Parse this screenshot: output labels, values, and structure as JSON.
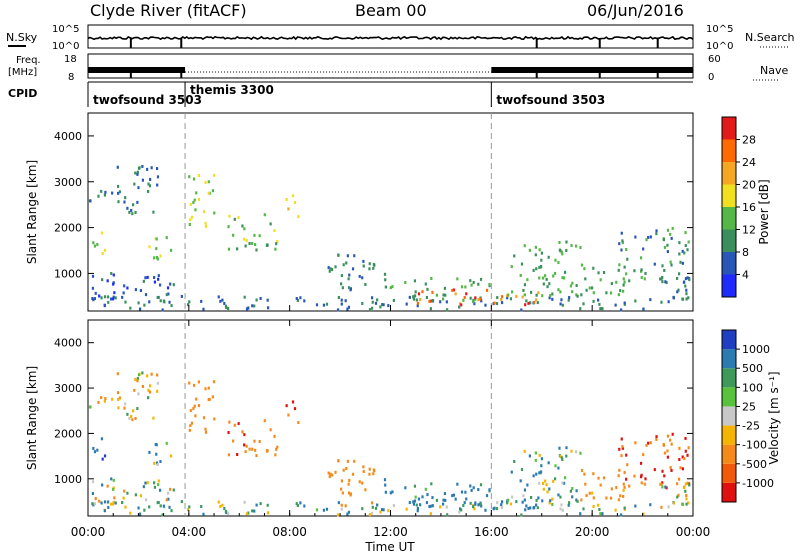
{
  "header": {
    "station": "Clyde River (fitACF)",
    "beam": "Beam 00",
    "date": "06/Jun/2016"
  },
  "noise_panel": {
    "left_label": "N.Sky",
    "right_label": "N.Search",
    "left_ticks": [
      "10^5",
      "10^0"
    ],
    "right_ticks": [
      "10^5",
      "10^0"
    ]
  },
  "freq_panel": {
    "left_label_1": "Freq.",
    "left_label_2": "[MHz]",
    "right_label": "Nave",
    "left_ticks": [
      "18",
      "8"
    ],
    "right_ticks": [
      "60",
      "0"
    ]
  },
  "cpid_panel": {
    "label": "CPID",
    "segments": [
      {
        "name": "twofsound",
        "id": "3503",
        "start_hour": 0.0,
        "end_hour": 3.85
      },
      {
        "name": "themis",
        "id": "3300",
        "start_hour": 3.85,
        "end_hour": 16.0
      },
      {
        "name": "twofsound",
        "id": "3503",
        "start_hour": 16.0,
        "end_hour": 24.0
      }
    ]
  },
  "x_axis": {
    "label": "Time UT",
    "ticks": [
      "00:00",
      "04:00",
      "08:00",
      "12:00",
      "16:00",
      "20:00",
      "00:00"
    ]
  },
  "power_panel": {
    "ylabel": "Slant Range [km]",
    "yticks": [
      "1000",
      "2000",
      "3000",
      "4000"
    ],
    "colorbar_label": "Power [dB]",
    "colorbar_ticks": [
      "4",
      "8",
      "12",
      "16",
      "20",
      "24",
      "28"
    ],
    "colors": [
      "#1f2bff",
      "#2957b8",
      "#3a8f5c",
      "#54b747",
      "#f0e020",
      "#f5a623",
      "#ff6a00",
      "#e41a1a"
    ]
  },
  "velocity_panel": {
    "ylabel": "Slant Range [km]",
    "yticks": [
      "1000",
      "2000",
      "3000",
      "4000"
    ],
    "colorbar_label": "Velocity [m s⁻¹]",
    "colorbar_ticks": [
      "1000",
      "500",
      "100",
      "25",
      "-25",
      "-100",
      "-500",
      "-1000"
    ],
    "colors": [
      "#1f3fc2",
      "#2b7ab0",
      "#3d9a5a",
      "#59c23d",
      "#c8c8c8",
      "#f5b400",
      "#f58a1a",
      "#f05a0a",
      "#e01010"
    ]
  },
  "chart_data": {
    "type": "heatmap",
    "title": "Clyde River (fitACF)  Beam 00  06/Jun/2016",
    "xlabel": "Time UT",
    "ylabel": "Slant Range [km]",
    "xlim": [
      0,
      24
    ],
    "ylim": [
      180,
      4500
    ],
    "power_scale_db": [
      0,
      32
    ],
    "velocity_scale_ms": [
      -1000,
      1000
    ],
    "echo_regions": [
      {
        "t_start": 0.0,
        "t_end": 24.0,
        "range_start": 200,
        "range_end": 500,
        "power_db": 8,
        "velocity": 50
      },
      {
        "t_start": 0.0,
        "t_end": 3.5,
        "range_start": 400,
        "range_end": 1000,
        "power_db": 6,
        "velocity": 0
      },
      {
        "t_start": 0.1,
        "t_end": 0.8,
        "range_start": 1400,
        "range_end": 1900,
        "power_db": 14,
        "velocity": 400
      },
      {
        "t_start": 0.0,
        "t_end": 1.0,
        "range_start": 2500,
        "range_end": 2900,
        "power_db": 8,
        "velocity": -80
      },
      {
        "t_start": 1.0,
        "t_end": 2.8,
        "range_start": 2300,
        "range_end": 3400,
        "power_db": 8,
        "velocity": -60
      },
      {
        "t_start": 2.3,
        "t_end": 3.5,
        "range_start": 1300,
        "range_end": 1800,
        "power_db": 14,
        "velocity": 60
      },
      {
        "t_start": 3.9,
        "t_end": 5.0,
        "range_start": 2000,
        "range_end": 3200,
        "power_db": 16,
        "velocity": -300
      },
      {
        "t_start": 5.5,
        "t_end": 7.5,
        "range_start": 1500,
        "range_end": 2300,
        "power_db": 14,
        "velocity": -400
      },
      {
        "t_start": 7.8,
        "t_end": 8.4,
        "range_start": 2200,
        "range_end": 2700,
        "power_db": 20,
        "velocity": -500
      },
      {
        "t_start": 9.5,
        "t_end": 11.5,
        "range_start": 400,
        "range_end": 1400,
        "power_db": 8,
        "velocity": -300
      },
      {
        "t_start": 11.5,
        "t_end": 12.2,
        "range_start": 600,
        "range_end": 1000,
        "power_db": 12,
        "velocity": 200
      },
      {
        "t_start": 12.5,
        "t_end": 16.0,
        "range_start": 350,
        "range_end": 900,
        "power_db": 12,
        "velocity": 150
      },
      {
        "t_start": 13.0,
        "t_end": 18.0,
        "range_start": 300,
        "range_end": 650,
        "power_db": 26,
        "velocity": 200
      },
      {
        "t_start": 16.5,
        "t_end": 19.5,
        "range_start": 500,
        "range_end": 1700,
        "power_db": 12,
        "velocity": 80
      },
      {
        "t_start": 19.5,
        "t_end": 21.5,
        "range_start": 500,
        "range_end": 1200,
        "power_db": 12,
        "velocity": -200
      },
      {
        "t_start": 21.0,
        "t_end": 23.8,
        "range_start": 800,
        "range_end": 2000,
        "power_db": 10,
        "velocity": -500
      },
      {
        "t_start": 22.5,
        "t_end": 24.0,
        "range_start": 300,
        "range_end": 900,
        "power_db": 8,
        "velocity": 0
      }
    ],
    "cpid_boundaries_hour": [
      3.85,
      16.0
    ]
  }
}
